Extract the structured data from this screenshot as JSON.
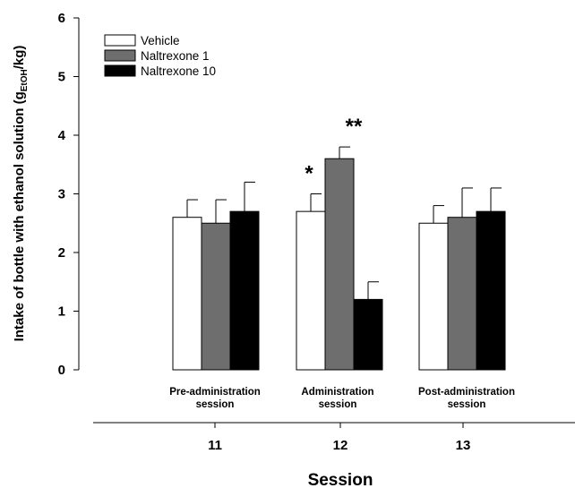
{
  "chart_data": {
    "type": "bar",
    "ylabel_main": "Intake of bottle with ethanol solution (g",
    "ylabel_sub": "EtOH",
    "ylabel_end": "/kg)",
    "xlabel": "Session",
    "ylim": [
      0,
      6
    ],
    "yticks": [
      "0",
      "1",
      "2",
      "3",
      "4",
      "5",
      "6"
    ],
    "legend_position": "top-left",
    "groups": [
      {
        "label_line1": "Pre-administration",
        "label_line2": "session",
        "day": "11"
      },
      {
        "label_line1": "Administration",
        "label_line2": "session",
        "day": "12"
      },
      {
        "label_line1": "Post-administration",
        "label_line2": "session",
        "day": "13"
      }
    ],
    "series": [
      {
        "name": "Vehicle",
        "color": "#ffffff",
        "values": [
          2.6,
          2.7,
          2.5
        ],
        "errors": [
          0.3,
          0.3,
          0.3
        ],
        "stars": [
          "",
          "*",
          ""
        ]
      },
      {
        "name": "Naltrexone 1",
        "color": "#6e6e6e",
        "values": [
          2.5,
          3.6,
          2.6
        ],
        "errors": [
          0.4,
          0.2,
          0.5
        ],
        "stars": [
          "",
          "**",
          ""
        ]
      },
      {
        "name": "Naltrexone 10",
        "color": "#000000",
        "values": [
          2.7,
          1.2,
          2.7
        ],
        "errors": [
          0.5,
          0.3,
          0.4
        ],
        "stars": [
          "",
          "",
          ""
        ]
      }
    ]
  }
}
